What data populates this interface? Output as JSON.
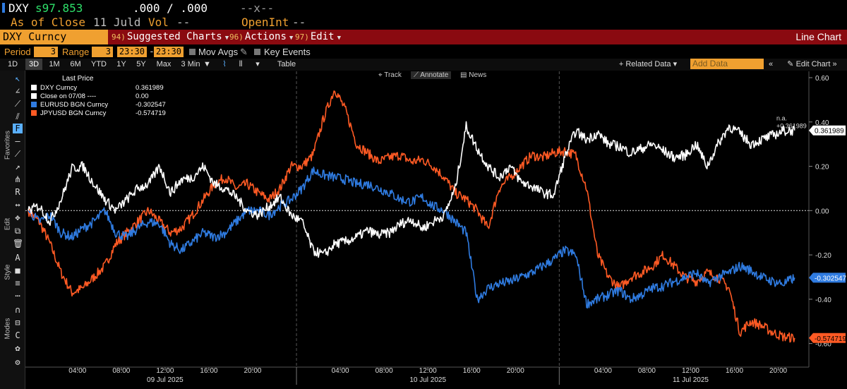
{
  "header": {
    "security": "DXY",
    "price": "s97.853",
    "bid_ask": ".000 / .000",
    "dashes": "--x--",
    "as_of": "As of Close",
    "as_of_date": "11 Juld",
    "vol_label": "Vol",
    "vol_value": "--",
    "openint_label": "OpenInt",
    "openint_value": "--"
  },
  "menubar": {
    "security_field": "DXY Curncy",
    "items": [
      {
        "num": "94)",
        "label": "Suggested Charts"
      },
      {
        "num": "96)",
        "label": "Actions"
      },
      {
        "num": "97)",
        "label": "Edit"
      }
    ],
    "chart_type": "Line Chart"
  },
  "period_row": {
    "period_label": "Period",
    "period_value": "3",
    "range_label": "Range",
    "range_value": "3",
    "time_from": "23:30",
    "time_to": "23:30",
    "mov_avgs": "Mov Avgs",
    "key_events": "Key Events"
  },
  "buttons": {
    "ranges": [
      "1D",
      "3D",
      "1M",
      "6M",
      "YTD",
      "1Y",
      "5Y",
      "Max"
    ],
    "selected": "3D",
    "interval": "3 Min",
    "table": "Table",
    "related_data": "Related Data",
    "add_data": "Add Data",
    "edit_chart": "Edit Chart"
  },
  "toolbar": {
    "labels": [
      "Favorites",
      "Edit",
      "Style",
      "Modes"
    ]
  },
  "plot_tools": {
    "track": "Track",
    "annotate": "Annotate",
    "news": "News"
  },
  "colors": {
    "dxy": "#ffffff",
    "close": "#ffffff",
    "eurusd": "#2f7be0",
    "jpyusd": "#ff5a24",
    "amber": "#f0a030",
    "menubar": "#8a0a10"
  },
  "chart_data": {
    "type": "line",
    "title": "Last Price",
    "legend": [
      {
        "name": "DXY Curncy",
        "value": "0.361989",
        "color": "#ffffff"
      },
      {
        "name": "Close on 07/08 ----",
        "value": "0.00",
        "color": "#ffffff"
      },
      {
        "name": "EURUSD BGN Curncy",
        "value": "-0.302547",
        "color": "#2f7be0"
      },
      {
        "name": "JPYUSD BGN Curncy",
        "value": "-0.574719",
        "color": "#ff5a24"
      }
    ],
    "ylim": [
      -0.7,
      0.6
    ],
    "yticks": [
      "0.60",
      "0.40",
      "0.20",
      "0.00",
      "-0.20",
      "-0.40",
      "-0.60"
    ],
    "ytick_values": [
      0.6,
      0.4,
      0.2,
      0.0,
      -0.2,
      -0.4,
      -0.6
    ],
    "xlim": [
      0,
      71.3
    ],
    "xtick_labels": [
      "04:00",
      "08:00",
      "12:00",
      "16:00",
      "20:00",
      "04:00",
      "08:00",
      "12:00",
      "16:00",
      "20:00",
      "04:00",
      "08:00",
      "12:00",
      "16:00",
      "20:00"
    ],
    "xtick_hours": [
      4.5,
      8.5,
      12.5,
      16.5,
      20.5,
      28.5,
      32.5,
      36.5,
      40.5,
      44.5,
      52.5,
      56.5,
      60.5,
      64.5,
      68.5
    ],
    "day_labels": [
      "09 Jul 2025",
      "10 Jul 2025",
      "11 Jul 2025"
    ],
    "day_label_hours": [
      12.5,
      36.5,
      60.5
    ],
    "day_boundaries": [
      24.5,
      48.5
    ],
    "last_value_labels": [
      {
        "text": "n.a.",
        "series": "DXY Curncy"
      },
      {
        "text": "+0.361989",
        "series": "DXY Curncy"
      }
    ],
    "series": [
      {
        "name": "DXY Curncy",
        "color": "#ffffff",
        "x": [
          0,
          1,
          2,
          3,
          4,
          5,
          6,
          7,
          8,
          9,
          10,
          11,
          12,
          13,
          14,
          15,
          16,
          17,
          18,
          19,
          20,
          21,
          22,
          23,
          24,
          25,
          26,
          27,
          28,
          29,
          30,
          31,
          32,
          33,
          34,
          35,
          36,
          37,
          38,
          39,
          40,
          41,
          42,
          43,
          44,
          45,
          46,
          47,
          48,
          49,
          50,
          51,
          52,
          53,
          54,
          55,
          56,
          57,
          58,
          59,
          60,
          61,
          62,
          63,
          64,
          65,
          66,
          67,
          68,
          69,
          70
        ],
        "values": [
          0.0,
          0.02,
          -0.05,
          0.05,
          0.19,
          0.2,
          0.12,
          0.05,
          0.0,
          0.05,
          0.1,
          0.12,
          0.2,
          0.08,
          0.14,
          0.15,
          0.2,
          0.12,
          0.1,
          0.06,
          0.0,
          -0.02,
          0.02,
          0.06,
          -0.02,
          -0.05,
          -0.18,
          -0.2,
          -0.15,
          -0.14,
          -0.12,
          -0.09,
          -0.11,
          -0.1,
          -0.06,
          -0.04,
          -0.08,
          -0.05,
          -0.02,
          0.1,
          0.38,
          0.28,
          0.2,
          0.15,
          0.2,
          0.13,
          0.11,
          0.08,
          0.07,
          0.24,
          0.36,
          0.32,
          0.35,
          0.3,
          0.29,
          0.26,
          0.28,
          0.3,
          0.27,
          0.24,
          0.25,
          0.3,
          0.2,
          0.3,
          0.38,
          0.35,
          0.3,
          0.32,
          0.34,
          0.36,
          0.362
        ]
      },
      {
        "name": "EURUSD BGN Curncy",
        "color": "#2f7be0",
        "x": [
          0,
          1,
          2,
          3,
          4,
          5,
          6,
          7,
          8,
          9,
          10,
          11,
          12,
          13,
          14,
          15,
          16,
          17,
          18,
          19,
          20,
          21,
          22,
          23,
          24,
          25,
          26,
          27,
          28,
          29,
          30,
          31,
          32,
          33,
          34,
          35,
          36,
          37,
          38,
          39,
          40,
          41,
          42,
          43,
          44,
          45,
          46,
          47,
          48,
          49,
          50,
          51,
          52,
          53,
          54,
          55,
          56,
          57,
          58,
          59,
          60,
          61,
          62,
          63,
          64,
          65,
          66,
          67,
          68,
          69,
          70
        ],
        "values": [
          0.0,
          -0.05,
          -0.02,
          -0.1,
          -0.12,
          -0.08,
          -0.05,
          0.0,
          -0.1,
          -0.12,
          -0.08,
          -0.05,
          -0.06,
          -0.15,
          -0.18,
          -0.14,
          -0.1,
          -0.12,
          -0.1,
          -0.05,
          0.0,
          0.0,
          -0.02,
          0.02,
          0.05,
          0.1,
          0.18,
          0.16,
          0.15,
          0.14,
          0.12,
          0.12,
          0.1,
          0.08,
          0.05,
          0.04,
          0.06,
          0.02,
          0.0,
          -0.05,
          -0.1,
          -0.4,
          -0.35,
          -0.33,
          -0.32,
          -0.3,
          -0.28,
          -0.25,
          -0.22,
          -0.18,
          -0.2,
          -0.42,
          -0.4,
          -0.38,
          -0.36,
          -0.4,
          -0.38,
          -0.35,
          -0.34,
          -0.32,
          -0.3,
          -0.28,
          -0.33,
          -0.3,
          -0.28,
          -0.25,
          -0.27,
          -0.3,
          -0.32,
          -0.33,
          -0.303
        ]
      },
      {
        "name": "JPYUSD BGN Curncy",
        "color": "#ff5a24",
        "x": [
          0,
          1,
          2,
          3,
          4,
          5,
          6,
          7,
          8,
          9,
          10,
          11,
          12,
          13,
          14,
          15,
          16,
          17,
          18,
          19,
          20,
          21,
          22,
          23,
          24,
          25,
          26,
          27,
          28,
          29,
          30,
          31,
          32,
          33,
          34,
          35,
          36,
          37,
          38,
          39,
          40,
          41,
          42,
          43,
          44,
          45,
          46,
          47,
          48,
          49,
          50,
          51,
          52,
          53,
          54,
          55,
          56,
          57,
          58,
          59,
          60,
          61,
          62,
          63,
          64,
          65,
          66,
          67,
          68,
          69,
          70
        ],
        "values": [
          0.0,
          -0.05,
          -0.15,
          -0.28,
          -0.37,
          -0.35,
          -0.3,
          -0.25,
          -0.15,
          -0.1,
          -0.05,
          0.0,
          -0.05,
          -0.1,
          -0.08,
          -0.02,
          0.05,
          0.12,
          0.15,
          0.1,
          0.12,
          0.08,
          0.05,
          0.1,
          0.2,
          0.2,
          0.25,
          0.42,
          0.55,
          0.45,
          0.3,
          0.26,
          0.22,
          0.24,
          0.25,
          0.22,
          0.23,
          0.2,
          0.15,
          0.08,
          0.05,
          0.0,
          -0.08,
          0.1,
          0.15,
          0.2,
          0.25,
          0.24,
          0.26,
          0.27,
          0.25,
          0.1,
          -0.2,
          -0.3,
          -0.35,
          -0.3,
          -0.28,
          -0.25,
          -0.2,
          -0.25,
          -0.3,
          -0.32,
          -0.28,
          -0.3,
          -0.35,
          -0.55,
          -0.5,
          -0.52,
          -0.55,
          -0.57,
          -0.575
        ]
      }
    ]
  }
}
